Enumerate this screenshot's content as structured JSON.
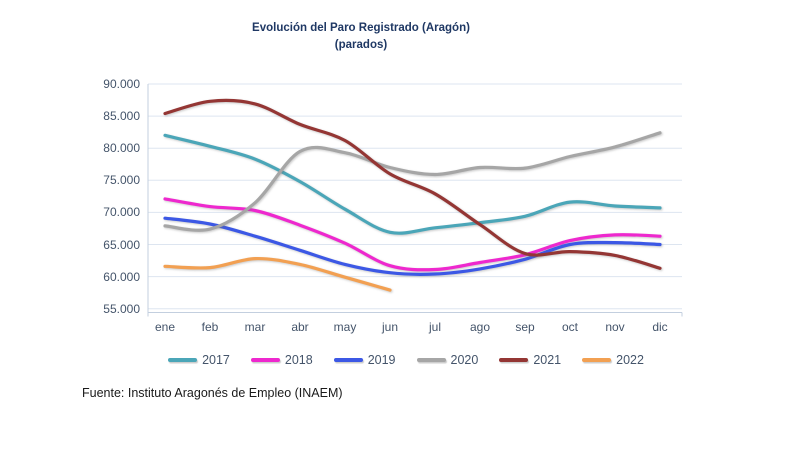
{
  "title": {
    "line1": "Evolución del Paro Registrado (Aragón)",
    "line2": "(parados)"
  },
  "source": "Fuente: Instituto Aragonés de Empleo (INAEM)",
  "colors": {
    "title_text": "#1F3864",
    "axis_text": "#44546A",
    "gridline": "#dde5f0",
    "axis_line": "#c3cfdf"
  },
  "chart_data": {
    "type": "line",
    "line_style": "smooth",
    "title": "Evolución del Paro Registrado (Aragón) (parados)",
    "xlabel": "",
    "ylabel": "parados",
    "categories": [
      "ene",
      "feb",
      "mar",
      "abr",
      "may",
      "jun",
      "jul",
      "ago",
      "sep",
      "oct",
      "nov",
      "dic"
    ],
    "ylim": [
      55000,
      90000
    ],
    "ytick_values": [
      90000,
      85000,
      80000,
      75000,
      70000,
      65000,
      60000,
      55000
    ],
    "ytick_labels": [
      "90.000",
      "85.000",
      "80.000",
      "75.000",
      "70.000",
      "65.000",
      "60.000",
      "55.000"
    ],
    "grid": true,
    "legend_position": "bottom",
    "series": [
      {
        "name": "2017",
        "color": "#4BA6B8",
        "values": [
          82000,
          80300,
          78300,
          74800,
          70500,
          66900,
          67600,
          68400,
          69400,
          71600,
          71000,
          70700
        ]
      },
      {
        "name": "2018",
        "color": "#EE28CE",
        "values": [
          72100,
          70900,
          70300,
          68000,
          65200,
          61700,
          61100,
          62200,
          63400,
          65600,
          66500,
          66300
        ]
      },
      {
        "name": "2019",
        "color": "#3C58E5",
        "values": [
          69100,
          68200,
          66300,
          64100,
          61900,
          60600,
          60400,
          61200,
          62700,
          65000,
          65300,
          65000
        ]
      },
      {
        "name": "2020",
        "color": "#A6A6A6",
        "values": [
          67900,
          67400,
          71500,
          79500,
          79300,
          77000,
          75900,
          77000,
          76900,
          78700,
          80200,
          82400
        ]
      },
      {
        "name": "2021",
        "color": "#943634",
        "values": [
          85400,
          87300,
          86900,
          83700,
          81200,
          76000,
          72900,
          68100,
          63600,
          63900,
          63300,
          61300
        ]
      },
      {
        "name": "2022",
        "color": "#F2A052",
        "values": [
          61600,
          61400,
          62800,
          61900,
          59900,
          57900
        ]
      }
    ]
  }
}
